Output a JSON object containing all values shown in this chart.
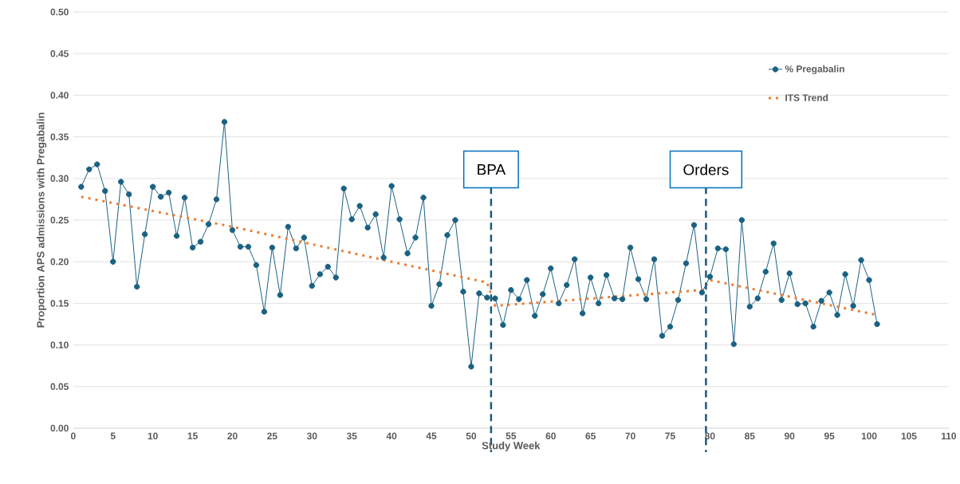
{
  "chart_data": {
    "type": "line",
    "xlabel": "Study Week",
    "ylabel": "Proportion APS admissions with Pregabalin",
    "x": [
      1,
      2,
      3,
      4,
      5,
      6,
      7,
      8,
      9,
      10,
      11,
      12,
      13,
      14,
      15,
      16,
      17,
      18,
      19,
      20,
      21,
      22,
      23,
      24,
      25,
      26,
      27,
      28,
      29,
      30,
      31,
      32,
      33,
      34,
      35,
      36,
      37,
      38,
      39,
      40,
      41,
      42,
      43,
      44,
      45,
      46,
      47,
      48,
      49,
      50,
      51,
      52,
      53,
      54,
      55,
      56,
      57,
      58,
      59,
      60,
      61,
      62,
      63,
      64,
      65,
      66,
      67,
      68,
      69,
      70,
      71,
      72,
      73,
      74,
      75,
      76,
      77,
      78,
      79,
      80,
      81,
      82,
      83,
      84,
      85,
      86,
      87,
      88,
      89,
      90,
      91,
      92,
      93,
      94,
      95,
      96,
      97,
      98,
      99,
      100,
      101
    ],
    "series": [
      {
        "name": "% Pregabalin",
        "color": "#1a6182",
        "marker": "circle",
        "line_style": "solid",
        "values": [
          0.29,
          0.311,
          0.317,
          0.285,
          0.2,
          0.296,
          0.281,
          0.17,
          0.233,
          0.29,
          0.278,
          0.283,
          0.231,
          0.277,
          0.217,
          0.224,
          0.245,
          0.275,
          0.368,
          0.238,
          0.218,
          0.218,
          0.196,
          0.14,
          0.217,
          0.16,
          0.242,
          0.216,
          0.229,
          0.171,
          0.185,
          0.194,
          0.181,
          0.288,
          0.251,
          0.267,
          0.241,
          0.257,
          0.205,
          0.291,
          0.251,
          0.21,
          0.229,
          0.277,
          0.147,
          0.173,
          0.232,
          0.25,
          0.164,
          0.074,
          0.162,
          0.157,
          0.156,
          0.124,
          0.166,
          0.155,
          0.178,
          0.135,
          0.161,
          0.192,
          0.15,
          0.172,
          0.203,
          0.138,
          0.181,
          0.15,
          0.184,
          0.156,
          0.155,
          0.217,
          0.179,
          0.155,
          0.203,
          0.111,
          0.122,
          0.154,
          0.198,
          0.244,
          0.163,
          0.182,
          0.216,
          0.215,
          0.101,
          0.25,
          0.146,
          0.156,
          0.188,
          0.222,
          0.154,
          0.186,
          0.149,
          0.15,
          0.122,
          0.153,
          0.163,
          0.136,
          0.185,
          0.147,
          0.202,
          0.178,
          0.125
        ]
      },
      {
        "name": "ITS Trend",
        "color": "#ed7d31",
        "marker": "none",
        "line_style": "dotted",
        "x": [
          1,
          20,
          40,
          52,
          53,
          79,
          80,
          101
        ],
        "values": [
          0.278,
          0.242,
          0.2,
          0.175,
          0.147,
          0.166,
          0.178,
          0.136
        ]
      }
    ],
    "xlim": [
      0,
      110
    ],
    "xticks": [
      0,
      5,
      10,
      15,
      20,
      25,
      30,
      35,
      40,
      45,
      50,
      55,
      60,
      65,
      70,
      75,
      80,
      85,
      90,
      95,
      100,
      105,
      110
    ],
    "ylim": [
      0,
      0.5
    ],
    "yticks": [
      {
        "value": 0,
        "label": "0.00"
      },
      {
        "value": 0.05,
        "label": "0.05"
      },
      {
        "value": 0.1,
        "label": "0.10"
      },
      {
        "value": 0.15,
        "label": "0.15"
      },
      {
        "value": 0.2,
        "label": "0.20"
      },
      {
        "value": 0.25,
        "label": "0.25"
      },
      {
        "value": 0.3,
        "label": "0.30"
      },
      {
        "value": 0.35,
        "label": "0.35"
      },
      {
        "value": 0.4,
        "label": "0.40"
      },
      {
        "value": 0.45,
        "label": "0.45"
      },
      {
        "value": 0.5,
        "label": "0.50"
      }
    ],
    "ref_lines": [
      {
        "axis": "x",
        "value": 52.5,
        "label": "BPA",
        "color": "#1a5b7a",
        "line_style": "dashed"
      },
      {
        "axis": "x",
        "value": 79.5,
        "label": "Orders",
        "color": "#1a5b7a",
        "line_style": "dashed"
      }
    ],
    "grid": "y",
    "legend": "top right"
  }
}
